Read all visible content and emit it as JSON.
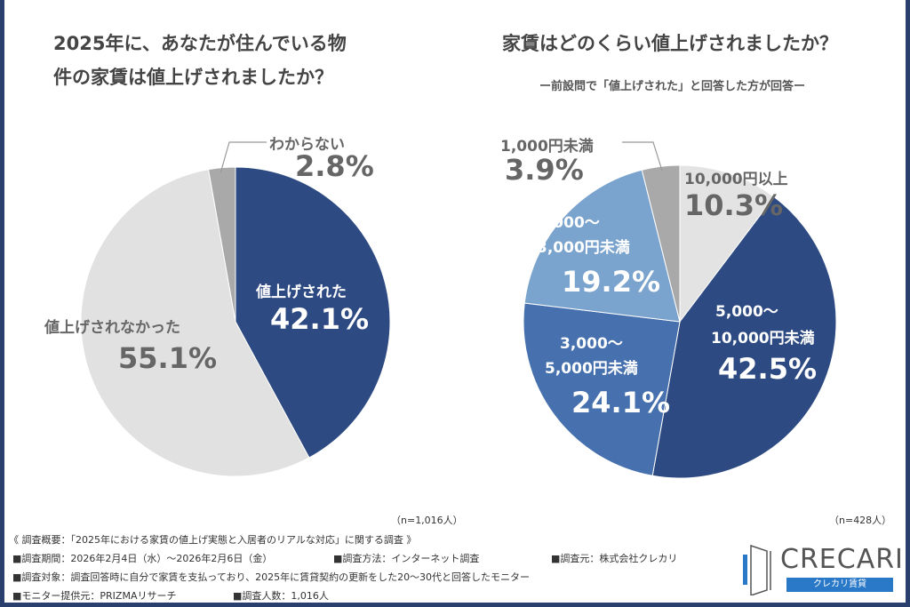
{
  "chart_data": [
    {
      "type": "pie",
      "title": "2025年に、あなたが住んでいる物件の家賃は値上げされましたか？",
      "n_label": "（n=1,016人）",
      "start": "top",
      "direction": "clockwise",
      "slices": [
        {
          "label": "値上げされた",
          "value": 42.1,
          "pct": "42.1%",
          "color": "#2d4a82"
        },
        {
          "label": "値上げされなかった",
          "value": 55.1,
          "pct": "55.1%",
          "color": "#e1e1e1"
        },
        {
          "label": "わからない",
          "value": 2.8,
          "pct": "2.8%",
          "color": "#a9a9a9"
        }
      ]
    },
    {
      "type": "pie",
      "title": "家賃はどのくらい値上げされましたか？",
      "subtitle": "ー前設問で「値上げされた」と回答した方が回答ー",
      "n_label": "（n=428人）",
      "start": "top",
      "direction": "clockwise",
      "slices": [
        {
          "label": "10,000円以上",
          "value": 10.3,
          "pct": "10.3%",
          "color": "#e3e3e3"
        },
        {
          "label": "5,000～10,000円未満",
          "line1": "5,000～",
          "line2": "10,000円未満",
          "value": 42.5,
          "pct": "42.5%",
          "color": "#2d4a82"
        },
        {
          "label": "3,000～5,000円未満",
          "line1": "3,000～",
          "line2": "5,000円未満",
          "value": 24.1,
          "pct": "24.1%",
          "color": "#4670ae"
        },
        {
          "label": "1,000～3,000円未満",
          "line1": "1,000～",
          "line2": "3,000円未満",
          "value": 19.2,
          "pct": "19.2%",
          "color": "#7aa3cd"
        },
        {
          "label": "1,000円未満",
          "value": 3.9,
          "pct": "3.9%",
          "color": "#a9a9a9"
        }
      ]
    }
  ],
  "footer": {
    "summary": "《 調査概要：「2025年における家賃の値上げ実態と入居者のリアルな対応」に関する調査 》",
    "period": "■調査期間：2026年2月4日（水）～2026年2月6日（金）",
    "method": "■調査方法：インターネット調査",
    "source": "■調査元：株式会社クレカリ",
    "target": "■調査対象：調査回答時に自分で家賃を支払っており、2025年に賃貸契約の更新をした20～30代と回答したモニター",
    "provider": "■モニター提供元：PRIZMAリサーチ",
    "count": "■調査人数：1,016人"
  },
  "logo": {
    "name": "CRECARI",
    "tagline": "クレカリ賃貸",
    "color": "#2a78c8"
  }
}
